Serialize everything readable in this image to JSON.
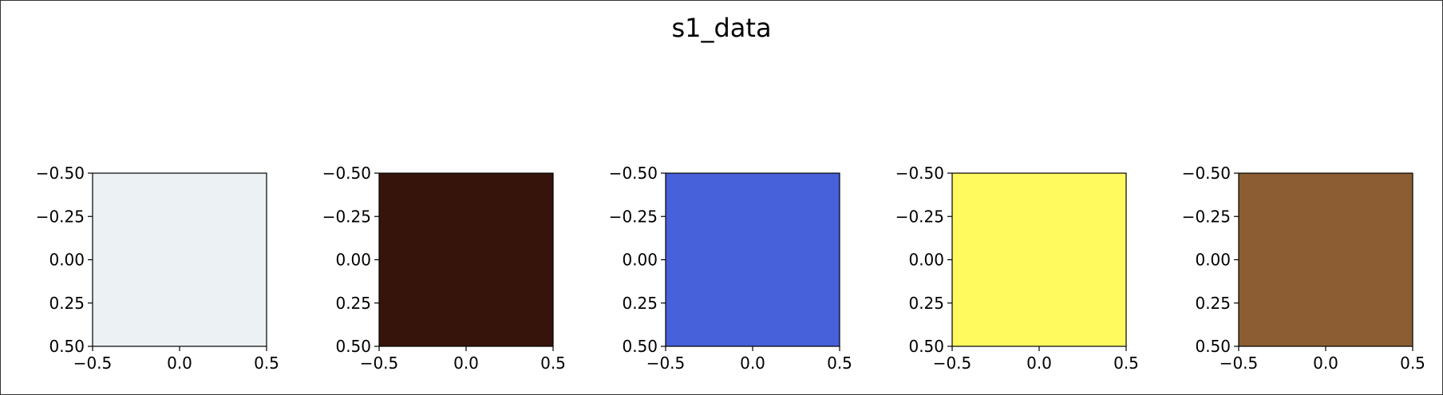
{
  "chart_data": {
    "type": "heatmap",
    "title": "s1_data",
    "panels": [
      {
        "color": "#ecf1f4",
        "xlim": [
          -0.5,
          0.5
        ],
        "ylim": [
          0.5,
          -0.5
        ]
      },
      {
        "color": "#36140b",
        "xlim": [
          -0.5,
          0.5
        ],
        "ylim": [
          0.5,
          -0.5
        ]
      },
      {
        "color": "#4661d9",
        "xlim": [
          -0.5,
          0.5
        ],
        "ylim": [
          0.5,
          -0.5
        ]
      },
      {
        "color": "#fffb5f",
        "xlim": [
          -0.5,
          0.5
        ],
        "ylim": [
          0.5,
          -0.5
        ]
      },
      {
        "color": "#8c5d32",
        "xlim": [
          -0.5,
          0.5
        ],
        "ylim": [
          0.5,
          -0.5
        ]
      }
    ],
    "xticks": [
      {
        "value": -0.5,
        "label": "−0.5"
      },
      {
        "value": 0.0,
        "label": "0.0"
      },
      {
        "value": 0.5,
        "label": "0.5"
      }
    ],
    "yticks": [
      {
        "value": -0.5,
        "label": "−0.50"
      },
      {
        "value": -0.25,
        "label": "−0.25"
      },
      {
        "value": 0.0,
        "label": "0.00"
      },
      {
        "value": 0.25,
        "label": "0.25"
      },
      {
        "value": 0.5,
        "label": "0.50"
      }
    ]
  }
}
